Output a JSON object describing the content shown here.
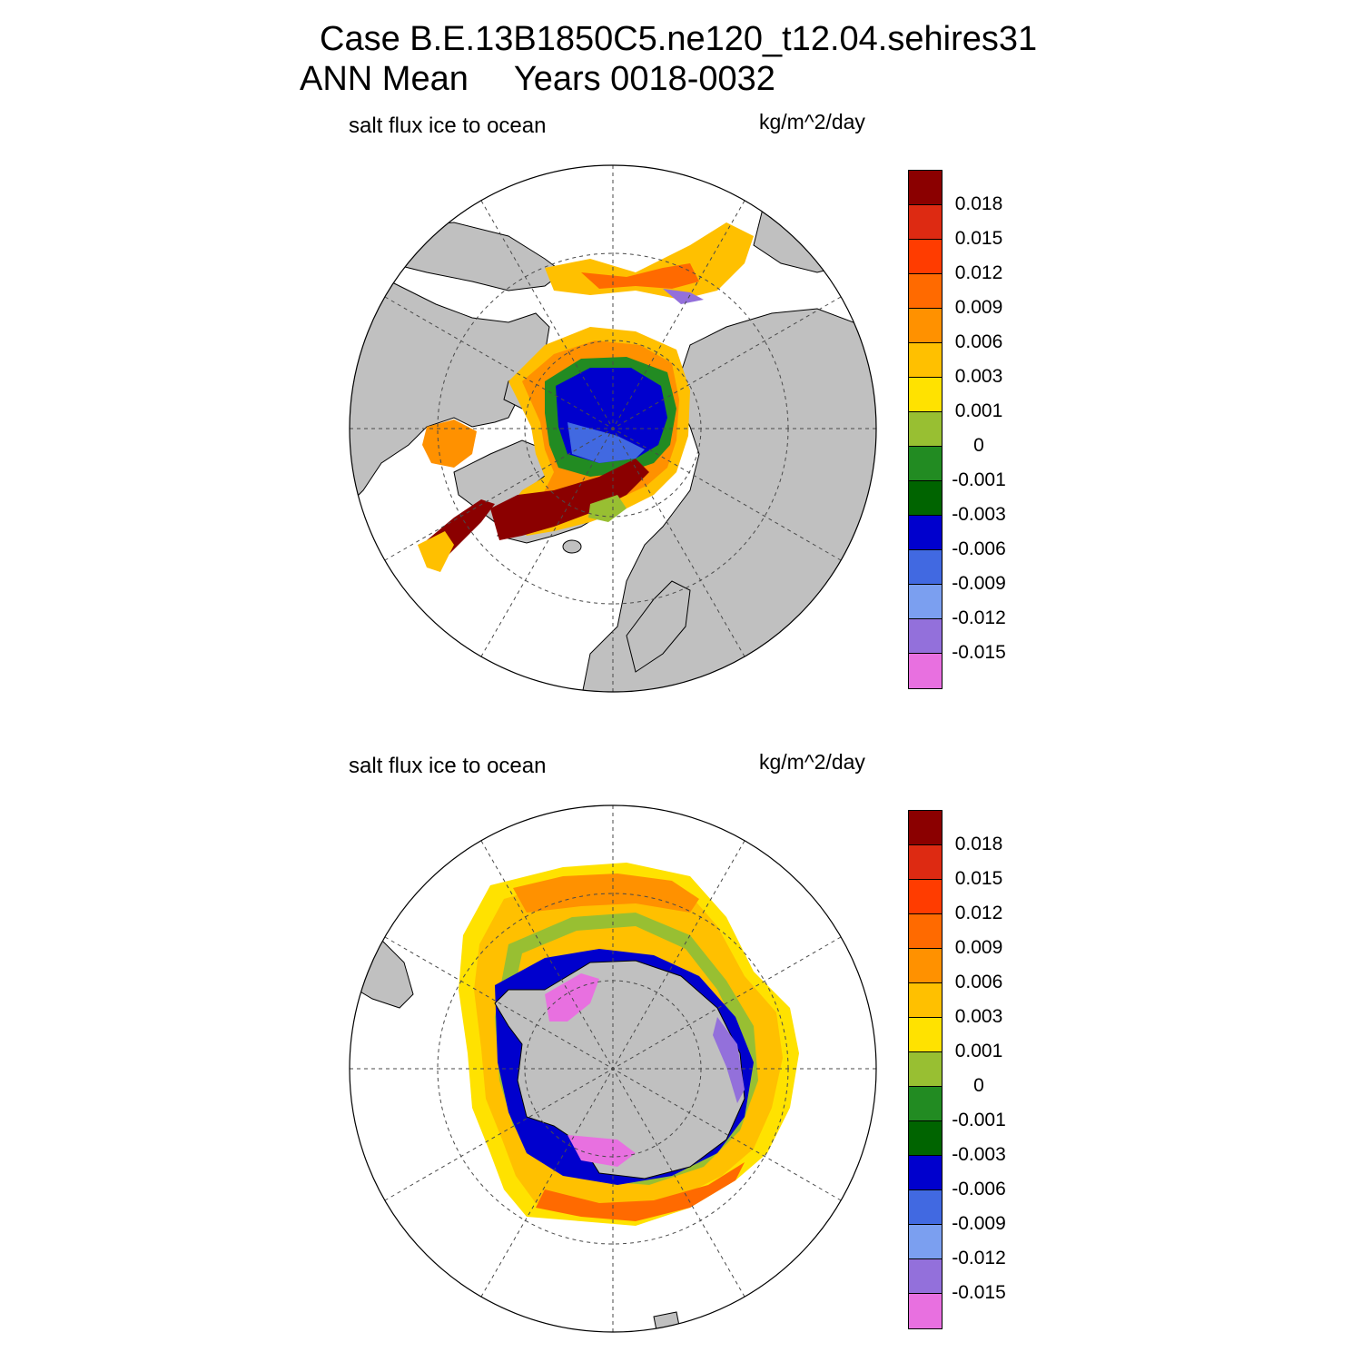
{
  "title": {
    "line1": "Case B.E.13B1850C5.ne120_t12.04.sehires31",
    "season": "ANN Mean",
    "years": "Years 0018-0032"
  },
  "panels": [
    {
      "hemisphere": "north",
      "variable": "salt flux ice to ocean",
      "units": "kg/m^2/day"
    },
    {
      "hemisphere": "south",
      "variable": "salt flux ice to ocean",
      "units": "kg/m^2/day"
    }
  ],
  "colorbar": {
    "labels": [
      "0.018",
      "0.015",
      "0.012",
      "0.009",
      "0.006",
      "0.003",
      "0.001",
      "0",
      "-0.001",
      "-0.003",
      "-0.006",
      "-0.009",
      "-0.012",
      "-0.015"
    ],
    "colors": [
      "#8b0000",
      "#dd2a12",
      "#ff3c00",
      "#ff6a00",
      "#ff9100",
      "#ffc000",
      "#ffe200",
      "#98bf32",
      "#228b22",
      "#006400",
      "#0000cd",
      "#4169e1",
      "#7b9ff0",
      "#9370db",
      "#e870e0"
    ]
  },
  "colors": {
    "land": "#c0c0c0",
    "ocean": "#ffffff",
    "grid": "#4a4a4a"
  },
  "chart_data": {
    "type": "heatmap",
    "projection": "polar stereographic",
    "variable": "salt flux ice to ocean",
    "units": "kg/m^2/day",
    "contour_levels": [
      -0.015,
      -0.012,
      -0.009,
      -0.006,
      -0.003,
      -0.001,
      0,
      0.001,
      0.003,
      0.006,
      0.009,
      0.012,
      0.015,
      0.018
    ],
    "panels": [
      "Northern Hemisphere",
      "Southern Hemisphere"
    ]
  }
}
